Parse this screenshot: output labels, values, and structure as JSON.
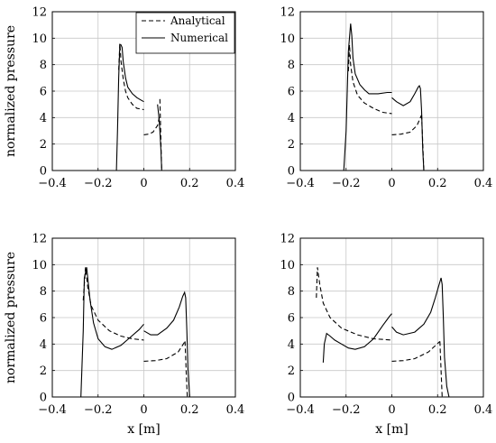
{
  "chart_data": [
    {
      "type": "line",
      "xlabel": "",
      "ylabel": "normalized pressure",
      "xlim": [
        -0.4,
        0.4
      ],
      "ylim": [
        0,
        12
      ],
      "xticks": [
        -0.4,
        -0.2,
        0,
        0.2,
        0.4
      ],
      "yticks": [
        0,
        2,
        4,
        6,
        8,
        10,
        12
      ],
      "xtick_labels": [
        "−0.4",
        "−0.2",
        "0",
        "0.2",
        "0.4"
      ],
      "ytick_labels": [
        "0",
        "2",
        "4",
        "6",
        "8",
        "10",
        "12"
      ],
      "grid": true,
      "legend": {
        "placement": "top-right",
        "entries": [
          "Analytical",
          "Numerical"
        ]
      },
      "series": [
        {
          "name": "Analytical",
          "style": "dashed",
          "segments": [
            [
              [
                -0.11,
                7.6
              ],
              [
                -0.105,
                9.6
              ],
              [
                -0.1,
                8.3
              ],
              [
                -0.09,
                6.9
              ],
              [
                -0.08,
                6.0
              ],
              [
                -0.07,
                5.5
              ],
              [
                -0.05,
                5.0
              ],
              [
                -0.03,
                4.7
              ],
              [
                0.0,
                4.6
              ]
            ],
            [
              [
                0.0,
                2.7
              ],
              [
                0.02,
                2.75
              ],
              [
                0.04,
                2.9
              ],
              [
                0.06,
                3.4
              ],
              [
                0.07,
                4.2
              ]
            ],
            [
              [
                0.07,
                5.4
              ],
              [
                0.072,
                4.0
              ],
              [
                0.075,
                2.0
              ],
              [
                0.078,
                0.0
              ]
            ]
          ]
        },
        {
          "name": "Numerical",
          "style": "solid",
          "segments": [
            [
              [
                -0.12,
                0.0
              ],
              [
                -0.115,
                3.0
              ],
              [
                -0.11,
                7.0
              ],
              [
                -0.105,
                9.5
              ],
              [
                -0.1,
                9.5
              ],
              [
                -0.095,
                9.3
              ],
              [
                -0.09,
                8.2
              ],
              [
                -0.08,
                7.0
              ],
              [
                -0.07,
                6.3
              ],
              [
                -0.05,
                5.8
              ],
              [
                -0.03,
                5.5
              ],
              [
                -0.01,
                5.3
              ],
              [
                0.0,
                5.2
              ]
            ],
            [
              [
                0.06,
                5.0
              ],
              [
                0.065,
                4.2
              ],
              [
                0.07,
                3.0
              ],
              [
                0.075,
                1.5
              ],
              [
                0.078,
                0.0
              ]
            ]
          ]
        }
      ]
    },
    {
      "type": "line",
      "xlabel": "",
      "ylabel": "",
      "xlim": [
        -0.4,
        0.4
      ],
      "ylim": [
        0,
        12
      ],
      "xticks": [
        -0.4,
        -0.2,
        0,
        0.2,
        0.4
      ],
      "yticks": [
        0,
        2,
        4,
        6,
        8,
        10,
        12
      ],
      "xtick_labels": [
        "−0.4",
        "−0.2",
        "0",
        "0.2",
        "0.4"
      ],
      "ytick_labels": [
        "0",
        "2",
        "4",
        "6",
        "8",
        "10",
        "12"
      ],
      "grid": true,
      "series": [
        {
          "name": "Analytical",
          "style": "dashed",
          "segments": [
            [
              [
                -0.19,
                7.5
              ],
              [
                -0.185,
                9.5
              ],
              [
                -0.18,
                8.0
              ],
              [
                -0.17,
                6.7
              ],
              [
                -0.15,
                5.7
              ],
              [
                -0.12,
                5.1
              ],
              [
                -0.08,
                4.7
              ],
              [
                -0.04,
                4.4
              ],
              [
                0.0,
                4.3
              ]
            ],
            [
              [
                0.0,
                2.7
              ],
              [
                0.04,
                2.75
              ],
              [
                0.08,
                2.9
              ],
              [
                0.11,
                3.4
              ],
              [
                0.13,
                4.2
              ]
            ],
            [
              [
                0.13,
                4.2
              ],
              [
                0.135,
                2.0
              ],
              [
                0.14,
                0.0
              ]
            ]
          ]
        },
        {
          "name": "Numerical",
          "style": "solid",
          "segments": [
            [
              [
                -0.21,
                0.0
              ],
              [
                -0.2,
                3.0
              ],
              [
                -0.19,
                9.0
              ],
              [
                -0.18,
                11.1
              ],
              [
                -0.175,
                10.2
              ],
              [
                -0.17,
                8.5
              ],
              [
                -0.16,
                7.3
              ],
              [
                -0.14,
                6.5
              ],
              [
                -0.12,
                6.1
              ],
              [
                -0.1,
                5.8
              ],
              [
                -0.06,
                5.8
              ],
              [
                -0.02,
                5.9
              ],
              [
                0.0,
                5.9
              ]
            ],
            [
              [
                0.0,
                5.5
              ],
              [
                0.02,
                5.2
              ],
              [
                0.05,
                4.9
              ],
              [
                0.08,
                5.2
              ],
              [
                0.1,
                5.8
              ],
              [
                0.115,
                6.3
              ],
              [
                0.12,
                6.4
              ],
              [
                0.125,
                6.2
              ],
              [
                0.13,
                4.5
              ],
              [
                0.135,
                1.5
              ],
              [
                0.14,
                0.0
              ]
            ]
          ]
        }
      ]
    },
    {
      "type": "line",
      "xlabel": "x [m]",
      "ylabel": "normalized pressure",
      "xlim": [
        -0.4,
        0.4
      ],
      "ylim": [
        0,
        12
      ],
      "xticks": [
        -0.4,
        -0.2,
        0,
        0.2,
        0.4
      ],
      "yticks": [
        0,
        2,
        4,
        6,
        8,
        10,
        12
      ],
      "xtick_labels": [
        "−0.4",
        "−0.2",
        "0",
        "0.2",
        "0.4"
      ],
      "ytick_labels": [
        "0",
        "2",
        "4",
        "6",
        "8",
        "10",
        "12"
      ],
      "grid": true,
      "series": [
        {
          "name": "Analytical",
          "style": "dashed",
          "segments": [
            [
              [
                -0.265,
                7.3
              ],
              [
                -0.255,
                9.8
              ],
              [
                -0.245,
                8.3
              ],
              [
                -0.23,
                6.9
              ],
              [
                -0.2,
                5.8
              ],
              [
                -0.15,
                5.0
              ],
              [
                -0.1,
                4.6
              ],
              [
                -0.05,
                4.4
              ],
              [
                0.0,
                4.3
              ]
            ],
            [
              [
                0.0,
                2.7
              ],
              [
                0.05,
                2.75
              ],
              [
                0.1,
                2.9
              ],
              [
                0.15,
                3.4
              ],
              [
                0.18,
                4.2
              ]
            ],
            [
              [
                0.18,
                4.2
              ],
              [
                0.185,
                2.0
              ],
              [
                0.19,
                0.0
              ]
            ]
          ]
        },
        {
          "name": "Numerical",
          "style": "solid",
          "segments": [
            [
              [
                -0.275,
                0.0
              ],
              [
                -0.265,
                5.0
              ],
              [
                -0.26,
                9.0
              ],
              [
                -0.25,
                9.8
              ],
              [
                -0.245,
                9.0
              ],
              [
                -0.235,
                7.3
              ],
              [
                -0.22,
                5.6
              ],
              [
                -0.2,
                4.4
              ],
              [
                -0.17,
                3.8
              ],
              [
                -0.14,
                3.6
              ],
              [
                -0.1,
                3.9
              ],
              [
                -0.06,
                4.5
              ],
              [
                -0.02,
                5.1
              ],
              [
                0.0,
                5.5
              ]
            ],
            [
              [
                0.0,
                5.0
              ],
              [
                0.03,
                4.7
              ],
              [
                0.06,
                4.7
              ],
              [
                0.1,
                5.2
              ],
              [
                0.13,
                5.8
              ],
              [
                0.155,
                6.8
              ],
              [
                0.17,
                7.6
              ],
              [
                0.178,
                7.9
              ],
              [
                0.183,
                7.5
              ],
              [
                0.188,
                5.0
              ],
              [
                0.193,
                2.0
              ],
              [
                0.2,
                0.0
              ]
            ]
          ]
        }
      ]
    },
    {
      "type": "line",
      "xlabel": "x [m]",
      "ylabel": "",
      "xlim": [
        -0.4,
        0.4
      ],
      "ylim": [
        0,
        12
      ],
      "xticks": [
        -0.4,
        -0.2,
        0,
        0.2,
        0.4
      ],
      "yticks": [
        0,
        2,
        4,
        6,
        8,
        10,
        12
      ],
      "xtick_labels": [
        "−0.4",
        "−0.2",
        "0",
        "0.2",
        "0.4"
      ],
      "ytick_labels": [
        "0",
        "2",
        "4",
        "6",
        "8",
        "10",
        "12"
      ],
      "grid": true,
      "series": [
        {
          "name": "Analytical",
          "style": "dashed",
          "segments": [
            [
              [
                -0.33,
                7.5
              ],
              [
                -0.325,
                9.8
              ],
              [
                -0.315,
                8.5
              ],
              [
                -0.3,
                7.1
              ],
              [
                -0.27,
                6.0
              ],
              [
                -0.22,
                5.2
              ],
              [
                -0.15,
                4.7
              ],
              [
                -0.08,
                4.4
              ],
              [
                0.0,
                4.3
              ]
            ],
            [
              [
                0.0,
                2.7
              ],
              [
                0.05,
                2.75
              ],
              [
                0.1,
                2.9
              ],
              [
                0.16,
                3.4
              ],
              [
                0.21,
                4.2
              ]
            ],
            [
              [
                0.21,
                4.2
              ],
              [
                0.215,
                2.0
              ],
              [
                0.22,
                0.0
              ]
            ]
          ]
        },
        {
          "name": "Numerical",
          "style": "solid",
          "segments": [
            [
              [
                -0.3,
                2.6
              ],
              [
                -0.295,
                4.0
              ],
              [
                -0.285,
                4.8
              ],
              [
                -0.27,
                4.6
              ],
              [
                -0.25,
                4.3
              ],
              [
                -0.22,
                4.0
              ],
              [
                -0.19,
                3.7
              ],
              [
                -0.16,
                3.6
              ],
              [
                -0.12,
                3.8
              ],
              [
                -0.08,
                4.4
              ],
              [
                -0.04,
                5.4
              ],
              [
                -0.01,
                6.1
              ],
              [
                0.0,
                6.3
              ]
            ],
            [
              [
                0.0,
                5.3
              ],
              [
                0.02,
                4.9
              ],
              [
                0.05,
                4.7
              ],
              [
                0.1,
                4.9
              ],
              [
                0.14,
                5.5
              ],
              [
                0.17,
                6.4
              ],
              [
                0.19,
                7.5
              ],
              [
                0.205,
                8.4
              ],
              [
                0.215,
                9.0
              ],
              [
                0.22,
                8.5
              ],
              [
                0.225,
                6.0
              ],
              [
                0.23,
                3.0
              ],
              [
                0.24,
                0.8
              ],
              [
                0.25,
                0.0
              ]
            ]
          ]
        }
      ]
    }
  ]
}
